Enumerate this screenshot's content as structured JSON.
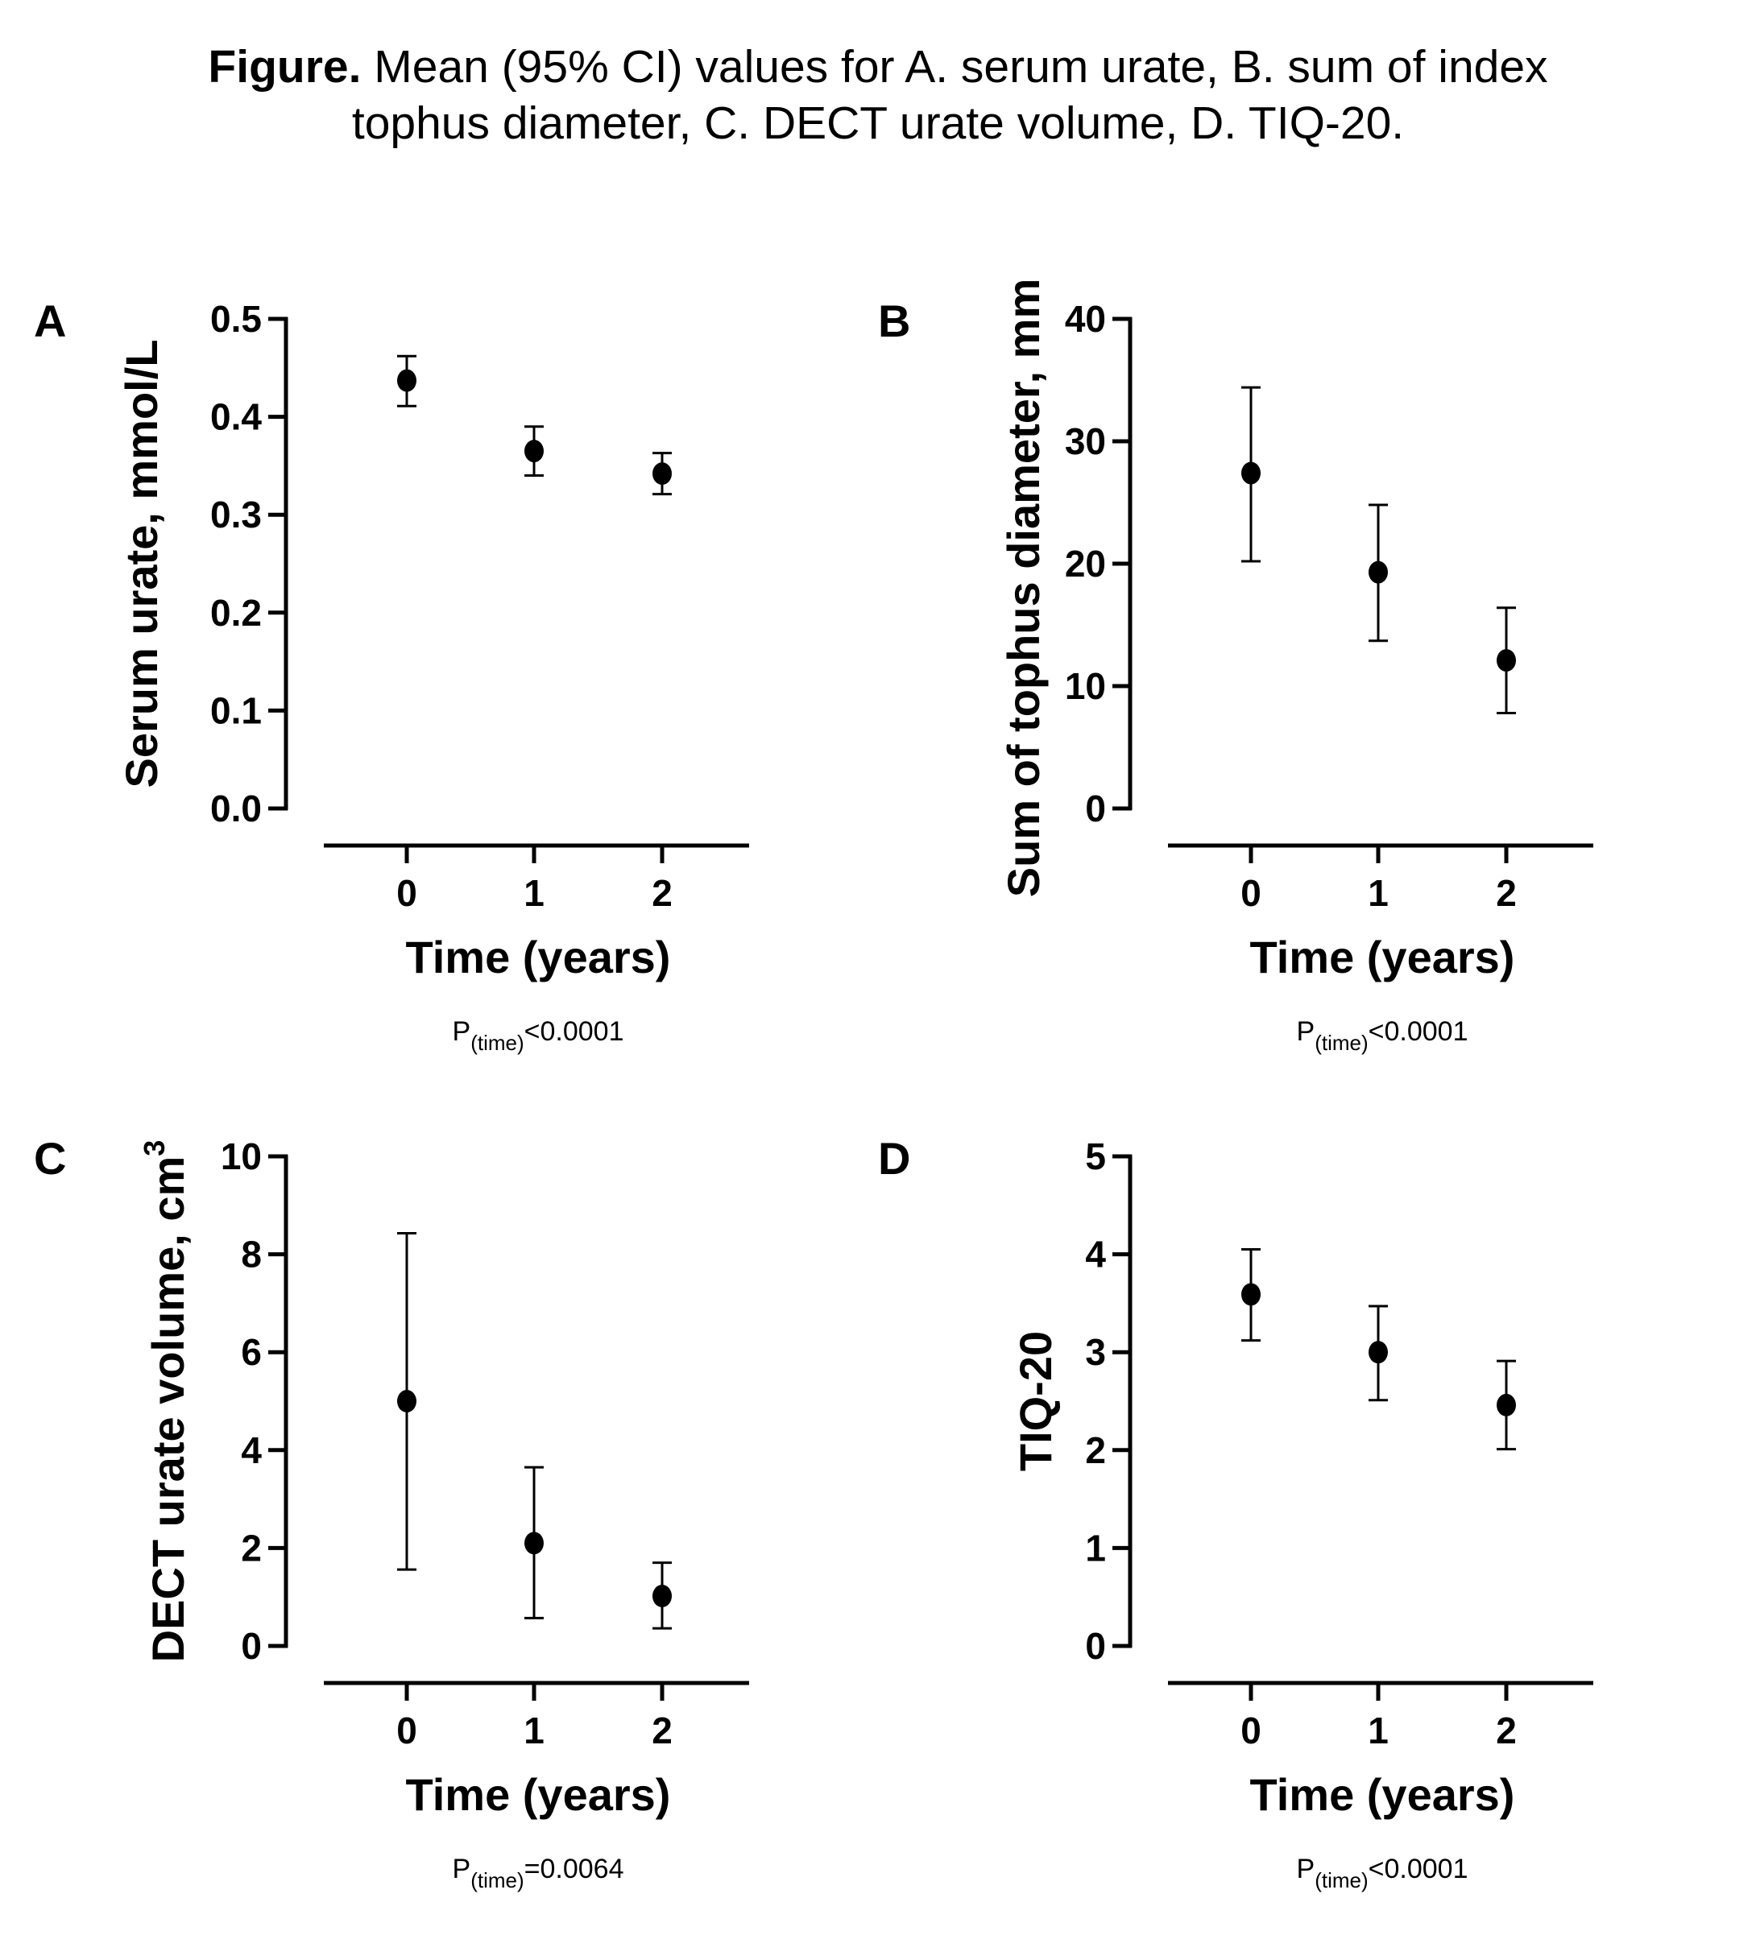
{
  "figure": {
    "title_bold": "Figure.",
    "title_line1": " Mean (95% CI) values for A. serum urate, B. sum of index",
    "title_line2": "tophus diameter, C. DECT urate volume, D. TIQ-20."
  },
  "chart_data": [
    {
      "panel": "A",
      "type": "scatter",
      "error_bars": "95% CI",
      "xlabel": "Time (years)",
      "ylabel": "Serum urate, mmol/L",
      "ylabel_superscript": "",
      "x": [
        0,
        1,
        2
      ],
      "x_tick_labels": [
        "0",
        "1",
        "2"
      ],
      "y": [
        0.437,
        0.365,
        0.342
      ],
      "ci_lower": [
        0.411,
        0.34,
        0.321
      ],
      "ci_upper": [
        0.462,
        0.39,
        0.363
      ],
      "ylim": [
        0,
        0.5
      ],
      "y_ticks": [
        0.0,
        0.1,
        0.2,
        0.3,
        0.4,
        0.5
      ],
      "y_tick_labels": [
        "0.0",
        "0.1",
        "0.2",
        "0.3",
        "0.4",
        "0.5"
      ],
      "p_label": "P",
      "p_subscript": "(time)",
      "p_value_text": "<0.0001",
      "grid": false
    },
    {
      "panel": "B",
      "type": "scatter",
      "error_bars": "95% CI",
      "xlabel": "Time (years)",
      "ylabel": "Sum of tophus diameter, mm",
      "ylabel_superscript": "",
      "x": [
        0,
        1,
        2
      ],
      "x_tick_labels": [
        "0",
        "1",
        "2"
      ],
      "y": [
        27.4,
        19.3,
        12.1
      ],
      "ci_lower": [
        20.2,
        13.7,
        7.8
      ],
      "ci_upper": [
        34.4,
        24.8,
        16.4
      ],
      "ylim": [
        0,
        40
      ],
      "y_ticks": [
        0,
        10,
        20,
        30,
        40
      ],
      "y_tick_labels": [
        "0",
        "10",
        "20",
        "30",
        "40"
      ],
      "p_label": "P",
      "p_subscript": "(time)",
      "p_value_text": "<0.0001",
      "grid": false
    },
    {
      "panel": "C",
      "type": "scatter",
      "error_bars": "95% CI",
      "xlabel": "Time (years)",
      "ylabel": "DECT urate volume, cm",
      "ylabel_superscript": "3",
      "x": [
        0,
        1,
        2
      ],
      "x_tick_labels": [
        "0",
        "1",
        "2"
      ],
      "y": [
        5.0,
        2.1,
        1.02
      ],
      "ci_lower": [
        1.56,
        0.57,
        0.36
      ],
      "ci_upper": [
        8.43,
        3.65,
        1.7
      ],
      "ylim": [
        0,
        10
      ],
      "y_ticks": [
        0,
        2,
        4,
        6,
        8,
        10
      ],
      "y_tick_labels": [
        "0",
        "2",
        "4",
        "6",
        "8",
        "10"
      ],
      "p_label": "P",
      "p_subscript": "(time)",
      "p_value_text": "=0.0064",
      "grid": false
    },
    {
      "panel": "D",
      "type": "scatter",
      "error_bars": "95% CI",
      "xlabel": "Time (years)",
      "ylabel": "TIQ-20",
      "ylabel_superscript": "",
      "x": [
        0,
        1,
        2
      ],
      "x_tick_labels": [
        "0",
        "1",
        "2"
      ],
      "y": [
        3.59,
        3.0,
        2.46
      ],
      "ci_lower": [
        3.12,
        2.51,
        2.01
      ],
      "ci_upper": [
        4.05,
        3.47,
        2.91
      ],
      "ylim": [
        0,
        5
      ],
      "y_ticks": [
        0,
        1,
        2,
        3,
        4,
        5
      ],
      "y_tick_labels": [
        "0",
        "1",
        "2",
        "3",
        "4",
        "5"
      ],
      "p_label": "P",
      "p_subscript": "(time)",
      "p_value_text": "<0.0001",
      "grid": false
    }
  ]
}
